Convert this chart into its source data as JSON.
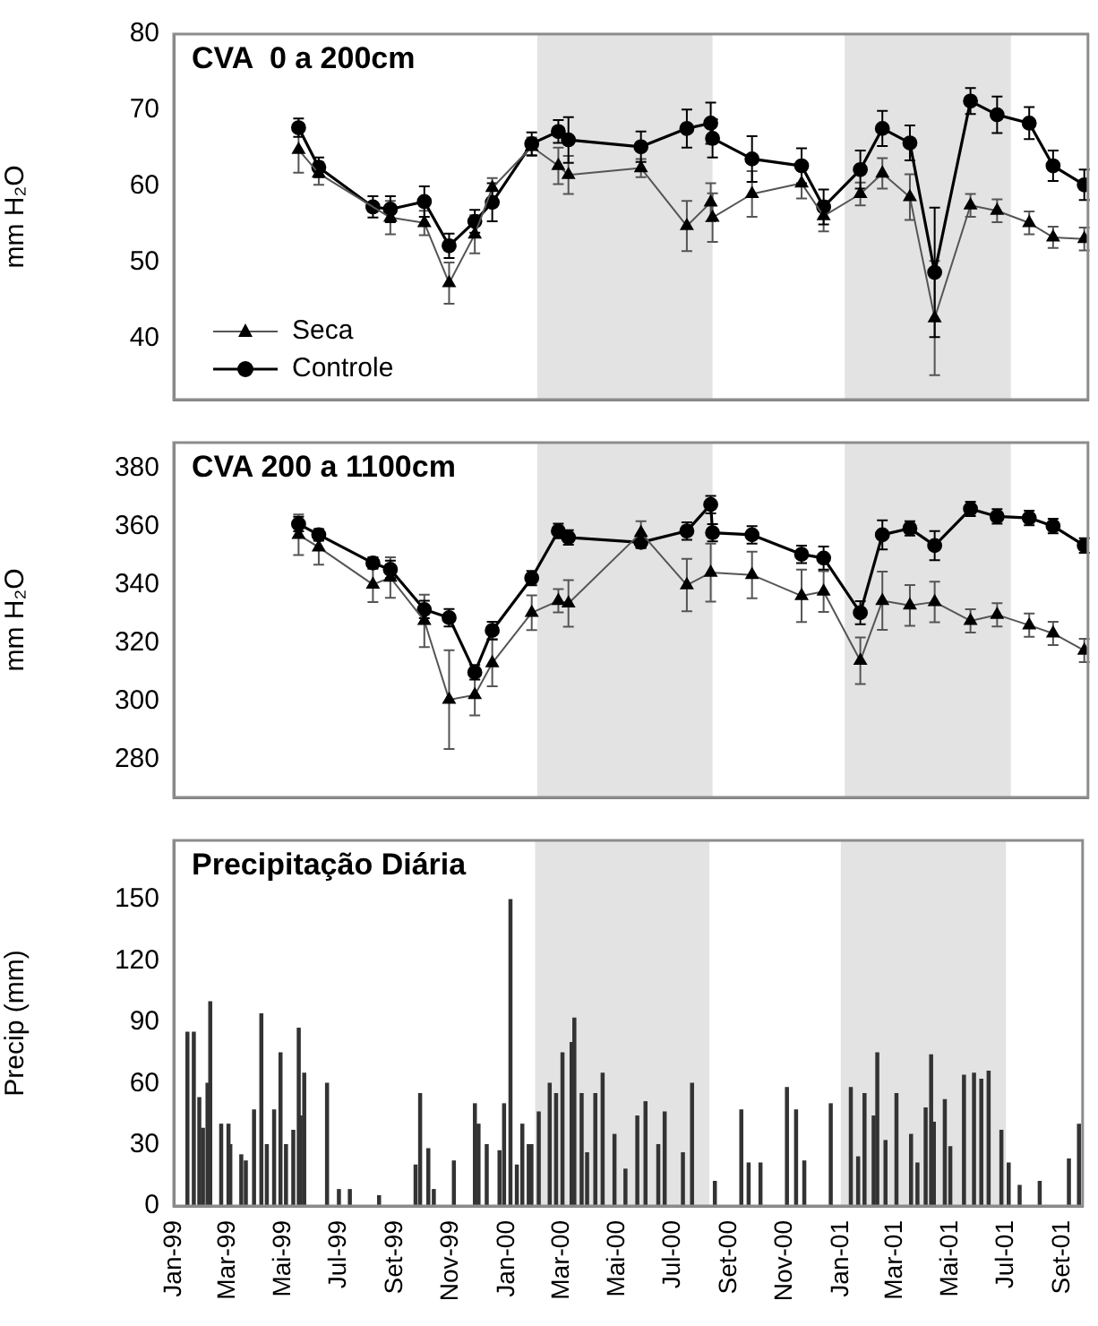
{
  "chart_data": [
    {
      "type": "line",
      "title": "CVA  0 a 200cm",
      "ylabel": "mm H₂O",
      "xlim": [
        "1999-01-01",
        "2001-09-23"
      ],
      "ylim": [
        32,
        80
      ],
      "yticks": [
        40,
        50,
        60,
        70,
        80
      ],
      "tick_labels": "y",
      "grid": false,
      "legend": "bottom left",
      "x": [
        "1999-05-17",
        "1999-06-08",
        "1999-08-06",
        "1999-08-25",
        "1999-10-01",
        "1999-10-28",
        "1999-11-25",
        "1999-12-14",
        "2000-01-26",
        "2000-02-24",
        "2000-03-06",
        "2000-05-24",
        "2000-07-13",
        "2000-08-08",
        "2000-08-10",
        "2000-09-22",
        "2000-11-15",
        "2000-12-09",
        "2001-01-18",
        "2001-02-11",
        "2001-03-13",
        "2001-04-09",
        "2001-05-18",
        "2001-06-16",
        "2001-07-21",
        "2001-08-16",
        "2001-09-19"
      ],
      "bands": [
        {
          "axis": "x",
          "from": "2000-02-01",
          "to": "2000-08-10",
          "color": "#e3e3e3"
        },
        {
          "axis": "x",
          "from": "2001-01-01",
          "to": "2001-07-01",
          "color": "#e3e3e3"
        }
      ],
      "series": [
        {
          "name": "Seca",
          "color": "#555555",
          "marker": "triangle",
          "line_style": "solid",
          "values": [
            64.8,
            61.7,
            null,
            55.9,
            55.2,
            47.3,
            53.7,
            59.8,
            65.2,
            62.7,
            61.5,
            62.4,
            54.8,
            57.9,
            55.9,
            59.0,
            60.4,
            56.1,
            59.0,
            61.7,
            58.6,
            42.7,
            57.5,
            56.8,
            55.2,
            53.3,
            53.1
          ],
          "errors": [
            3,
            1.5,
            null,
            2.2,
            1.6,
            2.7,
            2.5,
            1.3,
            1.2,
            2.4,
            2.5,
            1.2,
            3.3,
            2.5,
            3.2,
            3,
            2,
            2,
            1.5,
            2,
            3,
            7.5,
            1.5,
            1.5,
            1.5,
            1.4,
            1.5
          ]
        },
        {
          "name": "Controle",
          "color": "#000000",
          "marker": "circle",
          "line_style": "solid",
          "values": [
            67.7,
            62.5,
            57.3,
            57.0,
            58.0,
            52.2,
            55.4,
            57.9,
            65.6,
            67.2,
            66.1,
            65.2,
            67.6,
            68.3,
            66.3,
            63.6,
            62.7,
            57.3,
            62.2,
            67.6,
            65.7,
            48.7,
            71.2,
            69.4,
            68.3,
            62.7,
            60.2
          ],
          "errors": [
            1.2,
            1.3,
            1.4,
            1.7,
            2,
            1.6,
            1.5,
            2.5,
            1.5,
            1.5,
            3,
            2,
            2.5,
            2.7,
            2.5,
            3,
            2.3,
            2.3,
            2.5,
            2.3,
            2.3,
            8.5,
            1.7,
            2.4,
            2.1,
            2,
            2
          ]
        }
      ]
    },
    {
      "type": "line",
      "title": "CVA 200 a 1100cm",
      "ylabel": "mm H₂O",
      "xlim": [
        "1999-01-01",
        "2001-09-23"
      ],
      "ylim": [
        267,
        389
      ],
      "yticks": [
        280,
        300,
        320,
        340,
        360,
        380
      ],
      "tick_labels": "y",
      "grid": false,
      "x": [
        "1999-05-17",
        "1999-06-08",
        "1999-08-06",
        "1999-08-25",
        "1999-10-01",
        "1999-10-28",
        "1999-11-25",
        "1999-12-14",
        "2000-01-26",
        "2000-02-24",
        "2000-03-06",
        "2000-05-24",
        "2000-07-13",
        "2000-08-08",
        "2000-08-10",
        "2000-09-22",
        "2000-11-15",
        "2000-12-09",
        "2001-01-18",
        "2001-02-11",
        "2001-03-13",
        "2001-04-09",
        "2001-05-18",
        "2001-06-16",
        "2001-07-21",
        "2001-08-16",
        "2001-09-19"
      ],
      "bands": [
        {
          "axis": "x",
          "from": "2000-02-01",
          "to": "2000-08-10",
          "color": "#e3e3e3"
        },
        {
          "axis": "x",
          "from": "2001-01-01",
          "to": "2001-07-01",
          "color": "#e3e3e3"
        }
      ],
      "series": [
        {
          "color": "#555555",
          "marker": "triangle",
          "line_style": "solid",
          "values": [
            357.3,
            353,
            340.2,
            342.6,
            327.7,
            300.6,
            302.2,
            313.2,
            330.5,
            334.6,
            333.7,
            358,
            340,
            344.3,
            null,
            343.5,
            336.3,
            337.8,
            314,
            334.6,
            333,
            334.2,
            327.7,
            329.8,
            326.2,
            323.4,
            317.5
          ],
          "errors": [
            7,
            6,
            6,
            7,
            9,
            17,
            7,
            8,
            6,
            4,
            8,
            4,
            9,
            10,
            null,
            8,
            9,
            7,
            8,
            10,
            7,
            7,
            4,
            4,
            4,
            4,
            4
          ]
        },
        {
          "color": "#000000",
          "marker": "circle",
          "line_style": "solid",
          "values": [
            361.0,
            357.3,
            347.6,
            345.4,
            331.6,
            328.8,
            310,
            324.4,
            342.4,
            358.6,
            356.4,
            354.7,
            358.6,
            367.7,
            358,
            357.3,
            350.6,
            349.3,
            330.5,
            357.3,
            359.5,
            353.6,
            366.2,
            363.6,
            363.1,
            360.3,
            353.6
          ],
          "errors": [
            2.5,
            2,
            2,
            3,
            3,
            3,
            2.5,
            3,
            2.5,
            2.5,
            2.5,
            2,
            3,
            3,
            3,
            3,
            3,
            4,
            4,
            5,
            2.5,
            5,
            2.5,
            2.5,
            2.5,
            2.5,
            2.5
          ]
        }
      ]
    },
    {
      "type": "bar",
      "title": "Precipitação Diária",
      "ylabel": "Precip (mm)",
      "xlim": [
        "1999-01-01",
        "2001-09-23"
      ],
      "ylim": [
        0,
        179
      ],
      "yticks": [
        0,
        30,
        60,
        90,
        120,
        150
      ],
      "grid": false,
      "xticks": [
        {
          "value": "1999-01-01",
          "label": "Jan-99"
        },
        {
          "value": "1999-03-01",
          "label": "Mar-99"
        },
        {
          "value": "1999-05-01",
          "label": "Mai-99"
        },
        {
          "value": "1999-07-01",
          "label": "Jul-99"
        },
        {
          "value": "1999-09-01",
          "label": "Set-99"
        },
        {
          "value": "1999-11-01",
          "label": "Nov-99"
        },
        {
          "value": "2000-01-01",
          "label": "Jan-00"
        },
        {
          "value": "2000-03-01",
          "label": "Mar-00"
        },
        {
          "value": "2000-05-01",
          "label": "Mai-00"
        },
        {
          "value": "2000-07-01",
          "label": "Jul-00"
        },
        {
          "value": "2000-09-01",
          "label": "Set-00"
        },
        {
          "value": "2000-11-01",
          "label": "Nov-00"
        },
        {
          "value": "2001-01-01",
          "label": "Jan-01"
        },
        {
          "value": "2001-03-01",
          "label": "Mar-01"
        },
        {
          "value": "2001-05-01",
          "label": "Mai-01"
        },
        {
          "value": "2001-07-01",
          "label": "Jul-01"
        },
        {
          "value": "2001-09-01",
          "label": "Set-01"
        }
      ],
      "bands": [
        {
          "axis": "x",
          "from": "2000-02-01",
          "to": "2000-08-10",
          "color": "#e3e3e3"
        },
        {
          "axis": "x",
          "from": "2001-01-01",
          "to": "2001-07-01",
          "color": "#e3e3e3"
        }
      ],
      "x": [
        "1999-01-16",
        "1999-01-23",
        "1999-01-29",
        "1999-02-02",
        "1999-02-07",
        "1999-02-10",
        "1999-02-22",
        "1999-03-02",
        "1999-03-04",
        "1999-03-16",
        "1999-03-21",
        "1999-03-30",
        "1999-04-07",
        "1999-04-13",
        "1999-04-21",
        "1999-04-28",
        "1999-05-04",
        "1999-05-12",
        "1999-05-18",
        "1999-05-20",
        "1999-05-24",
        "1999-06-18",
        "1999-07-01",
        "1999-07-13",
        "1999-08-14",
        "1999-09-23",
        "1999-09-28",
        "1999-10-07",
        "1999-10-13",
        "1999-11-04",
        "1999-11-27",
        "1999-12-01",
        "1999-12-10",
        "1999-12-24",
        "1999-12-29",
        "2000-01-05",
        "2000-01-12",
        "2000-01-18",
        "2000-01-25",
        "2000-01-28",
        "2000-02-05",
        "2000-02-17",
        "2000-02-24",
        "2000-03-02",
        "2000-03-12",
        "2000-03-15",
        "2000-03-23",
        "2000-03-29",
        "2000-04-07",
        "2000-04-15",
        "2000-04-28",
        "2000-05-10",
        "2000-05-23",
        "2000-06-01",
        "2000-06-15",
        "2000-06-22",
        "2000-07-12",
        "2000-07-22",
        "2000-08-16",
        "2000-09-14",
        "2000-09-22",
        "2000-10-05",
        "2000-11-03",
        "2000-11-13",
        "2000-11-22",
        "2000-12-21",
        "2001-01-12",
        "2001-01-20",
        "2001-01-27",
        "2001-02-06",
        "2001-02-10",
        "2001-02-19",
        "2001-03-03",
        "2001-03-19",
        "2001-03-26",
        "2001-04-04",
        "2001-04-10",
        "2001-04-13",
        "2001-04-25",
        "2001-05-01",
        "2001-05-16",
        "2001-05-27",
        "2001-06-04",
        "2001-06-12",
        "2001-06-26",
        "2001-07-04",
        "2001-07-16",
        "2001-08-07",
        "2001-09-08",
        "2001-09-19"
      ],
      "series": [
        {
          "color": "#333333",
          "values": [
            85,
            85,
            53,
            38,
            60,
            100,
            40,
            40,
            30,
            25,
            22,
            47,
            94,
            30,
            47,
            75,
            30,
            37,
            87,
            44,
            65,
            60,
            8,
            8,
            5,
            20,
            55,
            28,
            8,
            22,
            50,
            40,
            30,
            27,
            50,
            150,
            20,
            40,
            30,
            30,
            46,
            60,
            55,
            75,
            80,
            92,
            55,
            26,
            55,
            65,
            35,
            18,
            44,
            51,
            30,
            46,
            26,
            60,
            12,
            47,
            21,
            21,
            58,
            47,
            22,
            50,
            58,
            24,
            55,
            44,
            75,
            32,
            55,
            35,
            21,
            48,
            74,
            41,
            52,
            29,
            64,
            65,
            62,
            66,
            37,
            21,
            10,
            12,
            23,
            40
          ]
        }
      ]
    }
  ]
}
